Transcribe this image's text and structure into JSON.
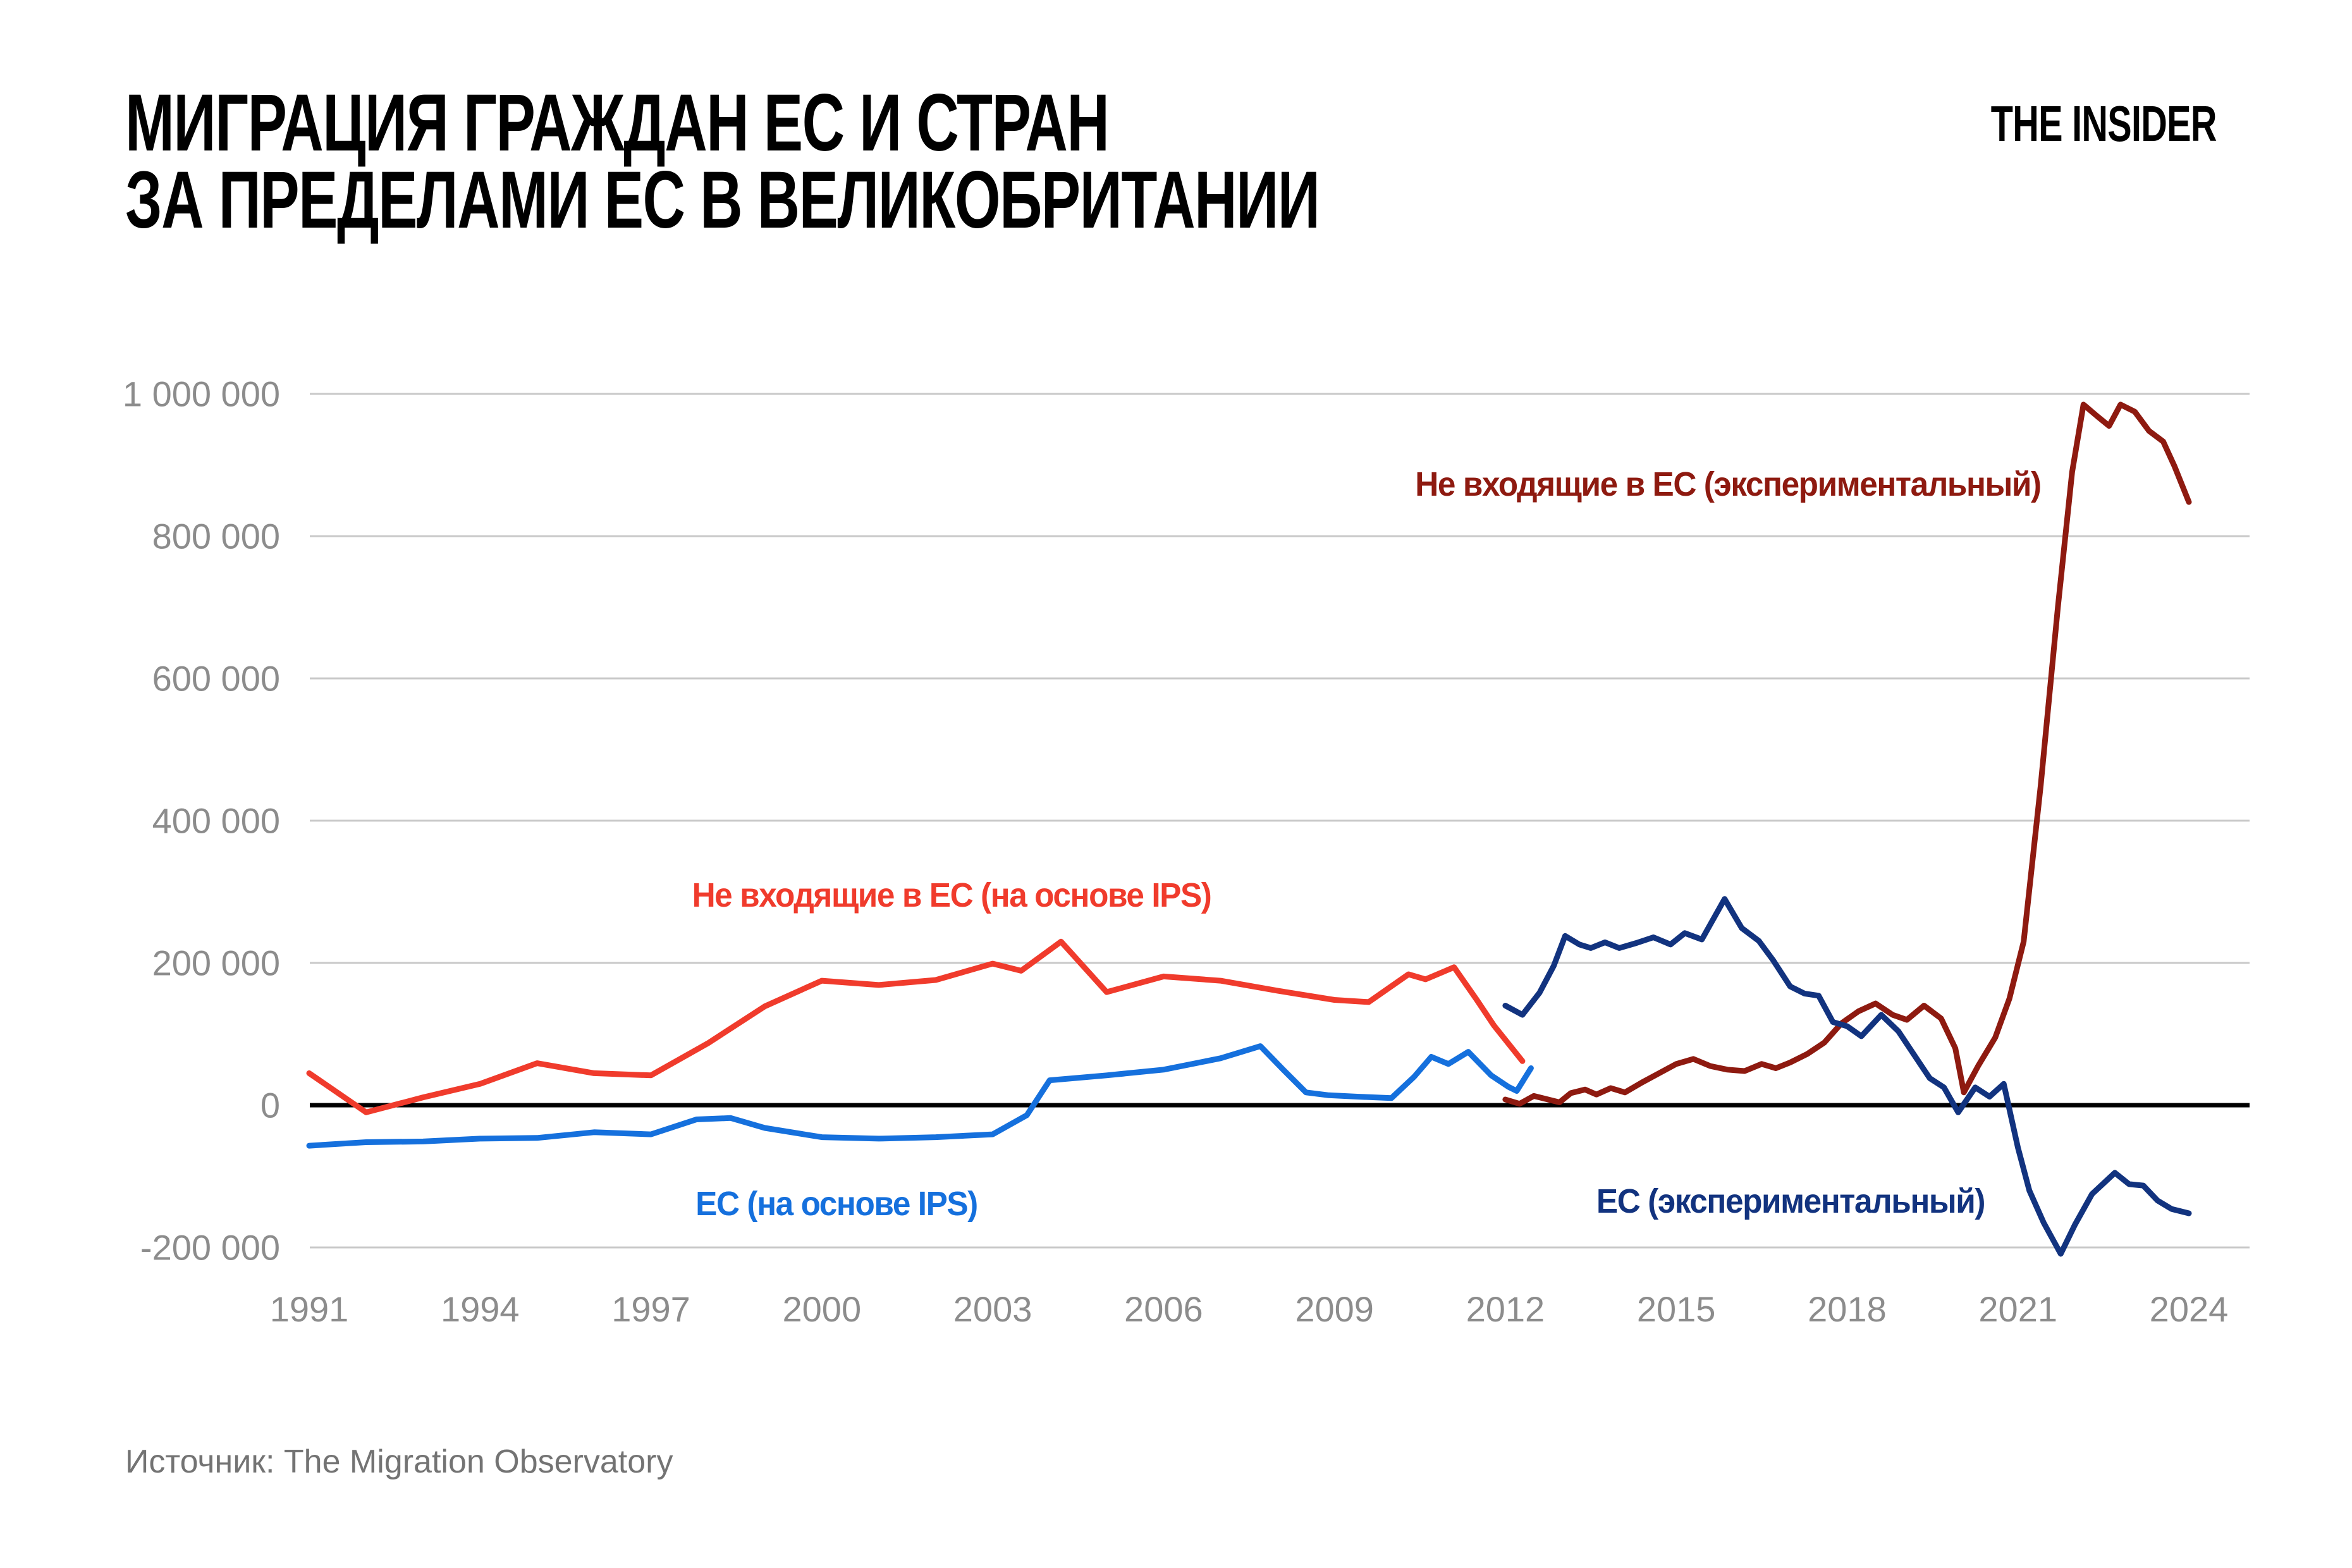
{
  "header": {
    "title_line1": "МИГРАЦИЯ ГРАЖДАН ЕС И СТРАН",
    "title_line2": "ЗА ПРЕДЕЛАМИ ЕС В ВЕЛИКОБРИТАНИИ",
    "logo": "THE INSIDER"
  },
  "footer": {
    "source": "Источник: The Migration Observatory"
  },
  "chart_data": {
    "type": "line",
    "title": "Миграция граждан ЕС и стран за пределами ЕС в Великобритании",
    "xlabel": "",
    "ylabel": "",
    "grid": true,
    "legend_position": "inline-labels",
    "xlim": [
      1990.7,
      2025.1
    ],
    "ylim": [
      -200000,
      1000000
    ],
    "gridline_color": "#c9c9c9",
    "zero_line_color": "#000000",
    "tick_label_color": "#8c8c8c",
    "x_ticks": [
      {
        "value": 1991,
        "label": "1991"
      },
      {
        "value": 1994,
        "label": "1994"
      },
      {
        "value": 1997,
        "label": "1997"
      },
      {
        "value": 2000,
        "label": "2000"
      },
      {
        "value": 2003,
        "label": "2003"
      },
      {
        "value": 2006,
        "label": "2006"
      },
      {
        "value": 2009,
        "label": "2009"
      },
      {
        "value": 2012,
        "label": "2012"
      },
      {
        "value": 2015,
        "label": "2015"
      },
      {
        "value": 2018,
        "label": "2018"
      },
      {
        "value": 2021,
        "label": "2021"
      },
      {
        "value": 2024,
        "label": "2024"
      }
    ],
    "y_ticks": [
      {
        "value": 1000000,
        "label": "1 000 000"
      },
      {
        "value": 800000,
        "label": "800 000"
      },
      {
        "value": 600000,
        "label": "600 000"
      },
      {
        "value": 400000,
        "label": "400 000"
      },
      {
        "value": 200000,
        "label": "200 000"
      },
      {
        "value": 0,
        "label": "0"
      },
      {
        "value": -200000,
        "label": "-200 000"
      }
    ],
    "series": [
      {
        "id": "non-eu-ips",
        "name": "Не входящие в ЕС (на основе IPS)",
        "color": "#f03b2c",
        "points": [
          [
            1991,
            45000
          ],
          [
            1992,
            -10000
          ],
          [
            1993,
            11000
          ],
          [
            1994,
            30000
          ],
          [
            1995,
            59000
          ],
          [
            1996,
            45000
          ],
          [
            1997,
            42000
          ],
          [
            1998,
            87000
          ],
          [
            1999,
            139000
          ],
          [
            2000,
            175000
          ],
          [
            2001,
            169000
          ],
          [
            2002,
            176000
          ],
          [
            2003,
            199000
          ],
          [
            2003.5,
            189000
          ],
          [
            2004.2,
            230000
          ],
          [
            2005,
            159000
          ],
          [
            2006,
            181000
          ],
          [
            2007,
            175000
          ],
          [
            2008,
            161000
          ],
          [
            2009,
            148000
          ],
          [
            2009.6,
            145000
          ],
          [
            2010.3,
            184000
          ],
          [
            2010.6,
            177000
          ],
          [
            2011.1,
            194000
          ],
          [
            2011.5,
            148000
          ],
          [
            2011.8,
            112000
          ],
          [
            2012.3,
            62000
          ]
        ]
      },
      {
        "id": "eu-ips",
        "name": "ЕС (на основе IPS)",
        "color": "#1570dd",
        "points": [
          [
            1991,
            -57000
          ],
          [
            1992,
            -52000
          ],
          [
            1993,
            -51000
          ],
          [
            1994,
            -47000
          ],
          [
            1995,
            -46000
          ],
          [
            1996,
            -38000
          ],
          [
            1997,
            -41000
          ],
          [
            1997.8,
            -20000
          ],
          [
            1998.4,
            -18000
          ],
          [
            1999,
            -32000
          ],
          [
            2000,
            -45000
          ],
          [
            2001,
            -47000
          ],
          [
            2002,
            -45000
          ],
          [
            2003,
            -41000
          ],
          [
            2003.6,
            -14000
          ],
          [
            2004,
            35000
          ],
          [
            2005,
            42000
          ],
          [
            2006,
            50000
          ],
          [
            2007,
            66000
          ],
          [
            2007.7,
            83000
          ],
          [
            2008.1,
            50000
          ],
          [
            2008.5,
            18000
          ],
          [
            2008.9,
            14000
          ],
          [
            2009.4,
            12000
          ],
          [
            2010,
            10000
          ],
          [
            2010.4,
            40000
          ],
          [
            2010.7,
            68000
          ],
          [
            2011,
            58000
          ],
          [
            2011.35,
            75000
          ],
          [
            2011.75,
            42000
          ],
          [
            2012.05,
            26000
          ],
          [
            2012.2,
            20000
          ],
          [
            2012.45,
            52000
          ]
        ]
      },
      {
        "id": "non-eu-experimental",
        "name": "Не входящие в ЕС (экспериментальный)",
        "color": "#8e1a10",
        "points": [
          [
            2012,
            8000
          ],
          [
            2012.25,
            2000
          ],
          [
            2012.5,
            13000
          ],
          [
            2012.7,
            9000
          ],
          [
            2012.95,
            4000
          ],
          [
            2013.15,
            17000
          ],
          [
            2013.4,
            22000
          ],
          [
            2013.6,
            15000
          ],
          [
            2013.85,
            24000
          ],
          [
            2014.1,
            18000
          ],
          [
            2014.4,
            32000
          ],
          [
            2014.7,
            45000
          ],
          [
            2015,
            58000
          ],
          [
            2015.3,
            65000
          ],
          [
            2015.6,
            55000
          ],
          [
            2015.9,
            50000
          ],
          [
            2016.2,
            48000
          ],
          [
            2016.5,
            58000
          ],
          [
            2016.75,
            52000
          ],
          [
            2017,
            60000
          ],
          [
            2017.3,
            72000
          ],
          [
            2017.6,
            88000
          ],
          [
            2017.9,
            115000
          ],
          [
            2018.2,
            132000
          ],
          [
            2018.5,
            143000
          ],
          [
            2018.8,
            127000
          ],
          [
            2019.05,
            120000
          ],
          [
            2019.35,
            140000
          ],
          [
            2019.65,
            122000
          ],
          [
            2019.9,
            80000
          ],
          [
            2020.05,
            18000
          ],
          [
            2020.3,
            55000
          ],
          [
            2020.6,
            95000
          ],
          [
            2020.85,
            150000
          ],
          [
            2021.1,
            230000
          ],
          [
            2021.4,
            450000
          ],
          [
            2021.7,
            700000
          ],
          [
            2021.95,
            890000
          ],
          [
            2022.15,
            985000
          ],
          [
            2022.4,
            968000
          ],
          [
            2022.6,
            955000
          ],
          [
            2022.8,
            985000
          ],
          [
            2023.05,
            975000
          ],
          [
            2023.3,
            948000
          ],
          [
            2023.55,
            933000
          ],
          [
            2023.75,
            898000
          ],
          [
            2024,
            848000
          ]
        ]
      },
      {
        "id": "eu-experimental",
        "name": "ЕС (экспериментальный)",
        "color": "#12337f",
        "points": [
          [
            2012,
            140000
          ],
          [
            2012.3,
            127000
          ],
          [
            2012.6,
            158000
          ],
          [
            2012.85,
            196000
          ],
          [
            2013.05,
            238000
          ],
          [
            2013.3,
            226000
          ],
          [
            2013.5,
            221000
          ],
          [
            2013.75,
            229000
          ],
          [
            2014,
            221000
          ],
          [
            2014.3,
            228000
          ],
          [
            2014.6,
            236000
          ],
          [
            2014.9,
            226000
          ],
          [
            2015.15,
            242000
          ],
          [
            2015.45,
            233000
          ],
          [
            2015.85,
            290000
          ],
          [
            2016.15,
            249000
          ],
          [
            2016.45,
            231000
          ],
          [
            2016.7,
            204000
          ],
          [
            2017,
            167000
          ],
          [
            2017.25,
            157000
          ],
          [
            2017.5,
            154000
          ],
          [
            2017.75,
            117000
          ],
          [
            2018,
            111000
          ],
          [
            2018.25,
            97000
          ],
          [
            2018.6,
            127000
          ],
          [
            2018.9,
            104000
          ],
          [
            2019.2,
            68000
          ],
          [
            2019.45,
            38000
          ],
          [
            2019.7,
            25000
          ],
          [
            2019.95,
            -10000
          ],
          [
            2020.25,
            25000
          ],
          [
            2020.5,
            12000
          ],
          [
            2020.75,
            30000
          ],
          [
            2021,
            -60000
          ],
          [
            2021.2,
            -120000
          ],
          [
            2021.45,
            -165000
          ],
          [
            2021.75,
            -209000
          ],
          [
            2022,
            -168000
          ],
          [
            2022.3,
            -125000
          ],
          [
            2022.7,
            -95000
          ],
          [
            2022.95,
            -111000
          ],
          [
            2023.2,
            -113000
          ],
          [
            2023.45,
            -134000
          ],
          [
            2023.7,
            -146000
          ],
          [
            2024,
            -152000
          ]
        ]
      }
    ]
  }
}
